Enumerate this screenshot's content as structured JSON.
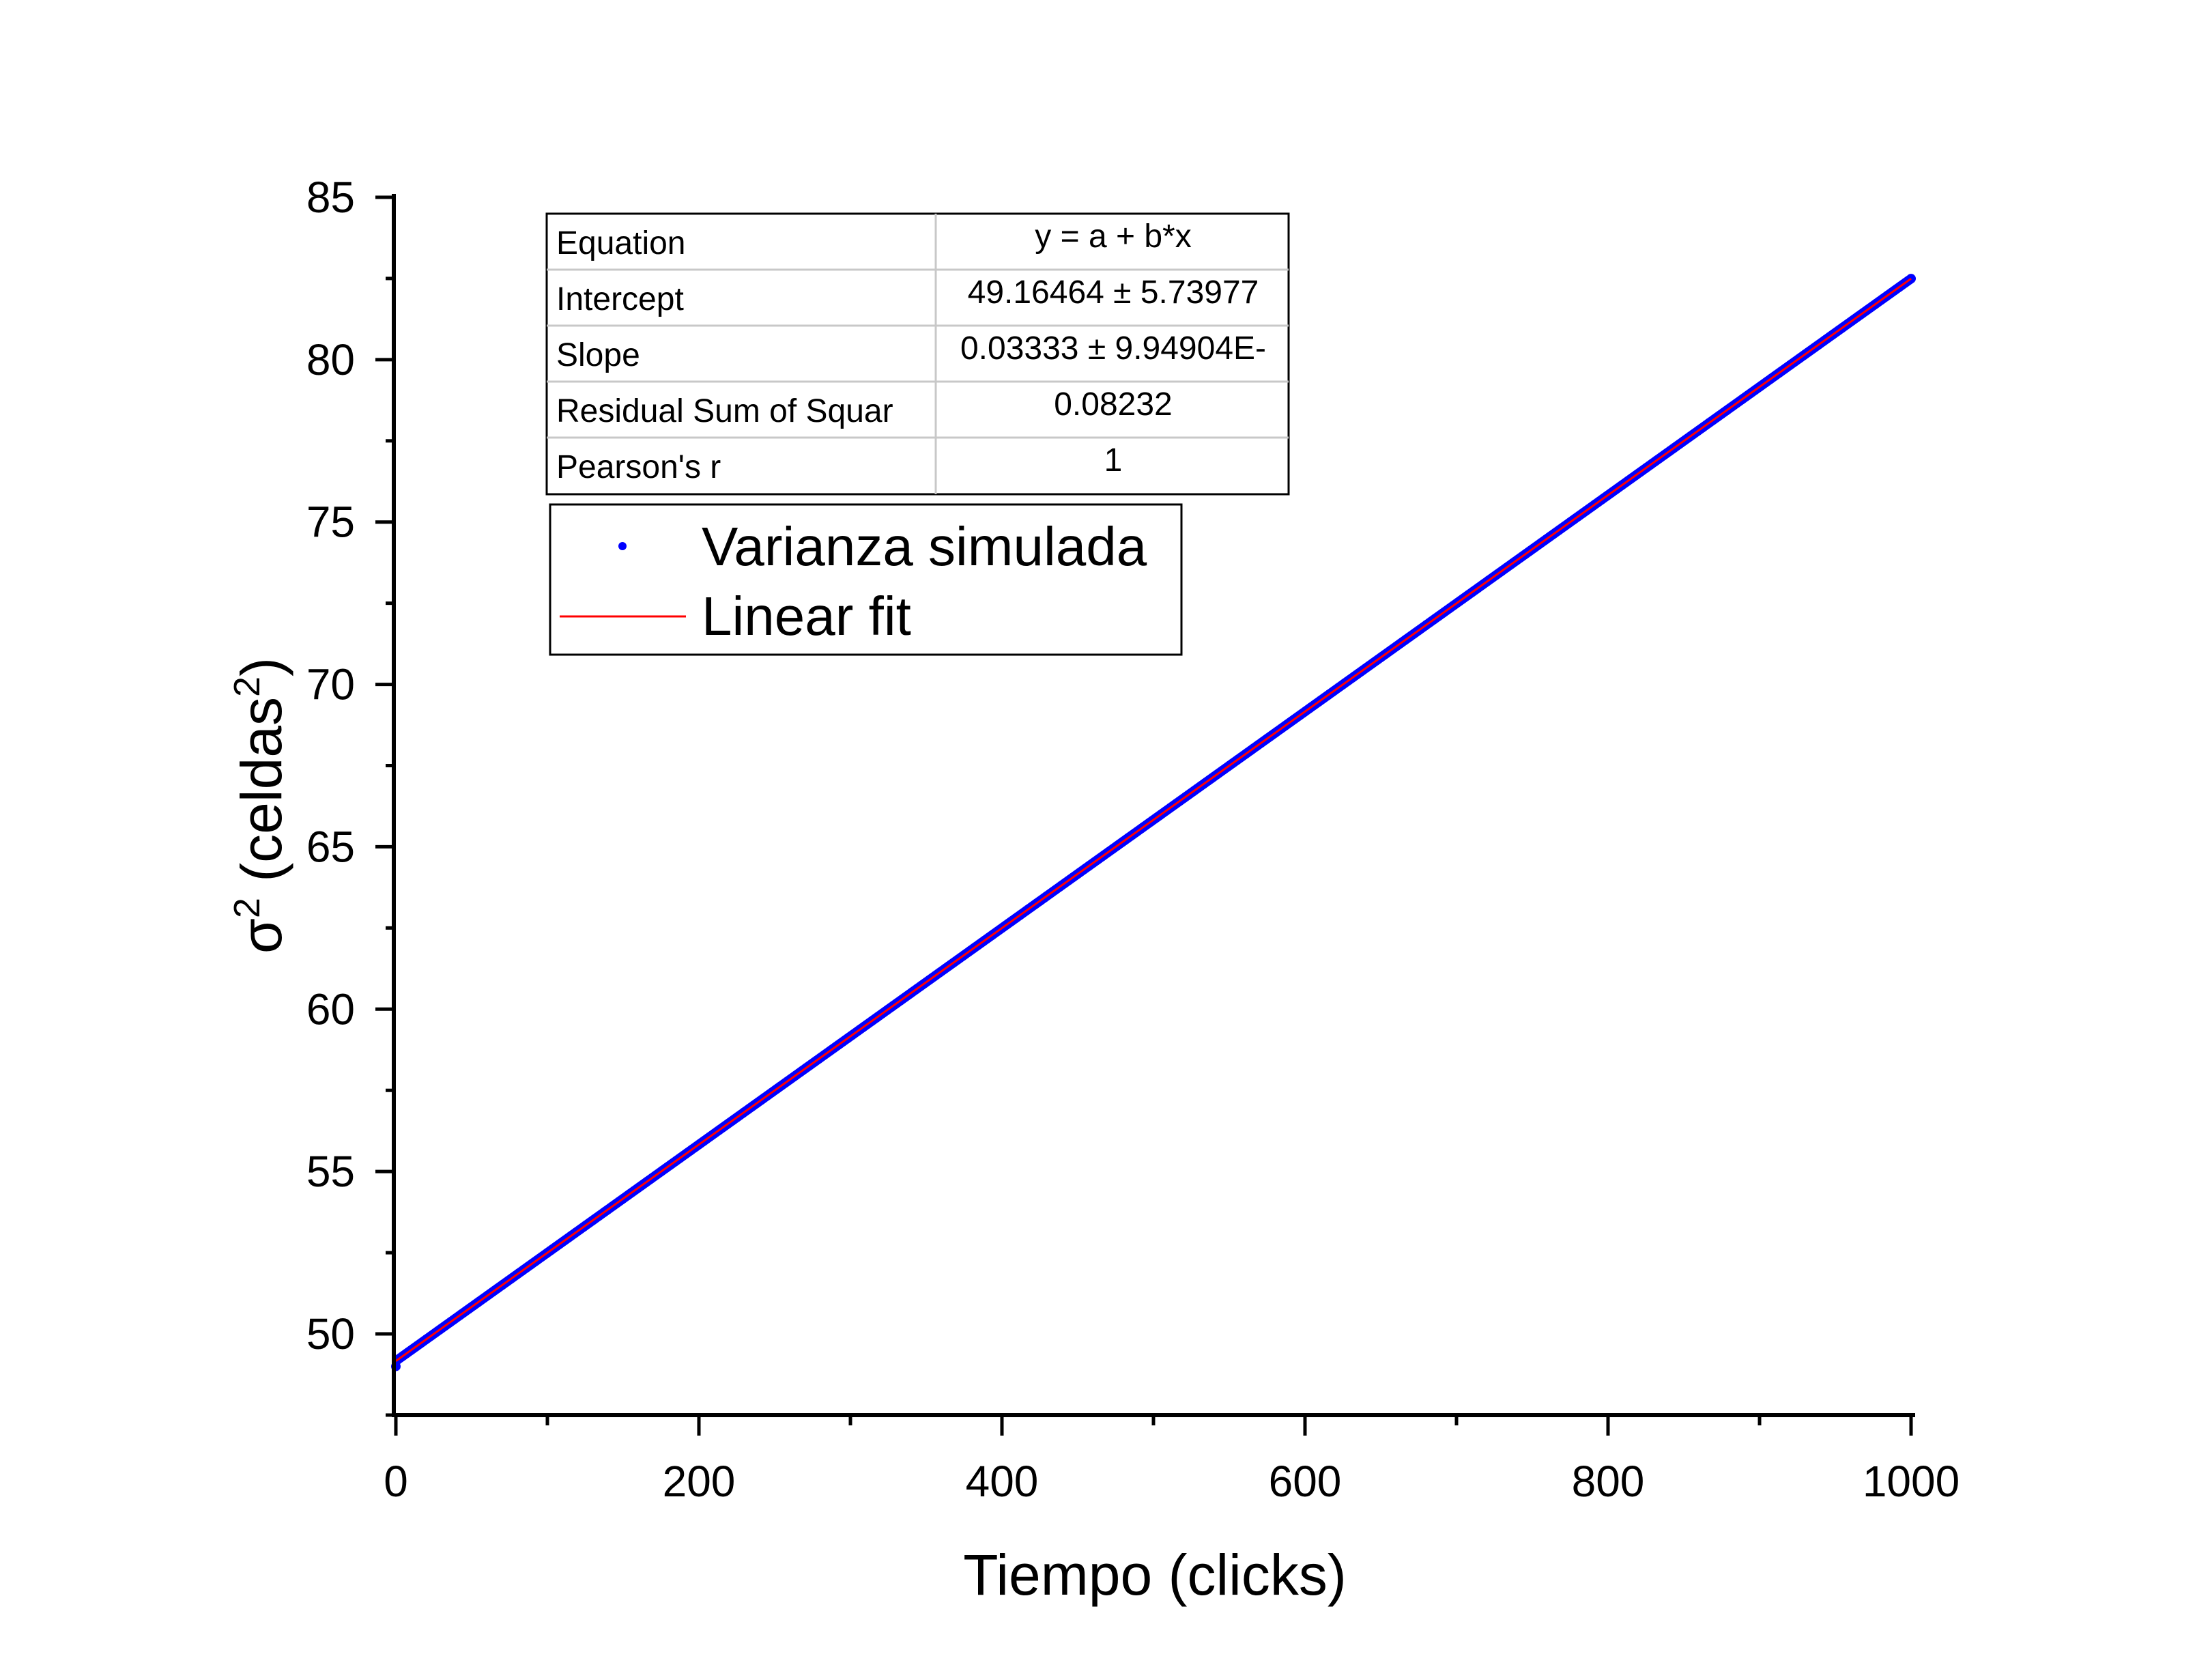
{
  "chart_data": {
    "type": "scatter",
    "title": "",
    "xlabel": "Tiempo (clicks)",
    "ylabel_parts": {
      "base": "σ",
      "sup1": "2",
      "mid": " (celdas",
      "sup2": "2",
      "end": ")"
    },
    "xlim": [
      0,
      1000
    ],
    "ylim": [
      47.5,
      85
    ],
    "x_ticks": [
      "0",
      "200",
      "400",
      "600",
      "800",
      "1000"
    ],
    "x_tick_values": [
      0,
      200,
      400,
      600,
      800,
      1000
    ],
    "y_ticks": [
      "50",
      "55",
      "60",
      "65",
      "70",
      "75",
      "80",
      "85"
    ],
    "y_tick_values": [
      50,
      55,
      60,
      65,
      70,
      75,
      80,
      85
    ],
    "x_minor_step": 100,
    "y_minor_step": 2.5,
    "grid": false,
    "legend_position": "top-left",
    "series": [
      {
        "name": "Varianza simulada",
        "kind": "points",
        "color": "#0000ff",
        "x_start": 0,
        "x_end": 1000,
        "x_step": 1,
        "y_first": 49.0,
        "intercept": 49.16464,
        "slope": 0.03333
      },
      {
        "name": "Linear fit",
        "kind": "line",
        "color": "#ff0000",
        "intercept": 49.16464,
        "slope": 0.03333
      }
    ],
    "fit_table": {
      "rows": [
        {
          "label": "Equation",
          "value": "y = a + b*x"
        },
        {
          "label": "Intercept",
          "value": "49.16464 ± 5.73977"
        },
        {
          "label": "Slope",
          "value": "0.03333 ± 9.94904E-"
        },
        {
          "label": "Residual Sum of Squar",
          "value": "0.08232"
        },
        {
          "label": "Pearson's r",
          "value": "1"
        }
      ]
    }
  }
}
